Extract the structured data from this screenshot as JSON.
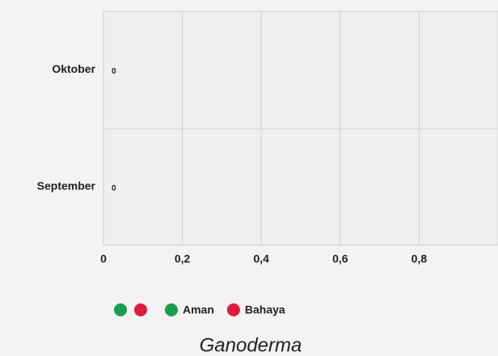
{
  "chart_data": {
    "type": "hbar",
    "title": "Ganoderma",
    "categories": [
      "Oktober",
      "September"
    ],
    "series": [
      {
        "name": "Aman",
        "color": "#1a9e4f",
        "values": [
          0,
          0
        ]
      },
      {
        "name": "Bahaya",
        "color": "#e0193e",
        "values": [
          0,
          0
        ]
      }
    ],
    "xlim": [
      0,
      1
    ],
    "xticks": [
      0,
      {
        "value": 0.2,
        "label": "0,2"
      },
      {
        "value": 0.4,
        "label": "0,4"
      },
      {
        "value": 0.6,
        "label": "0,6"
      },
      {
        "value": 0.8,
        "label": "0,8"
      }
    ],
    "grid": true
  }
}
